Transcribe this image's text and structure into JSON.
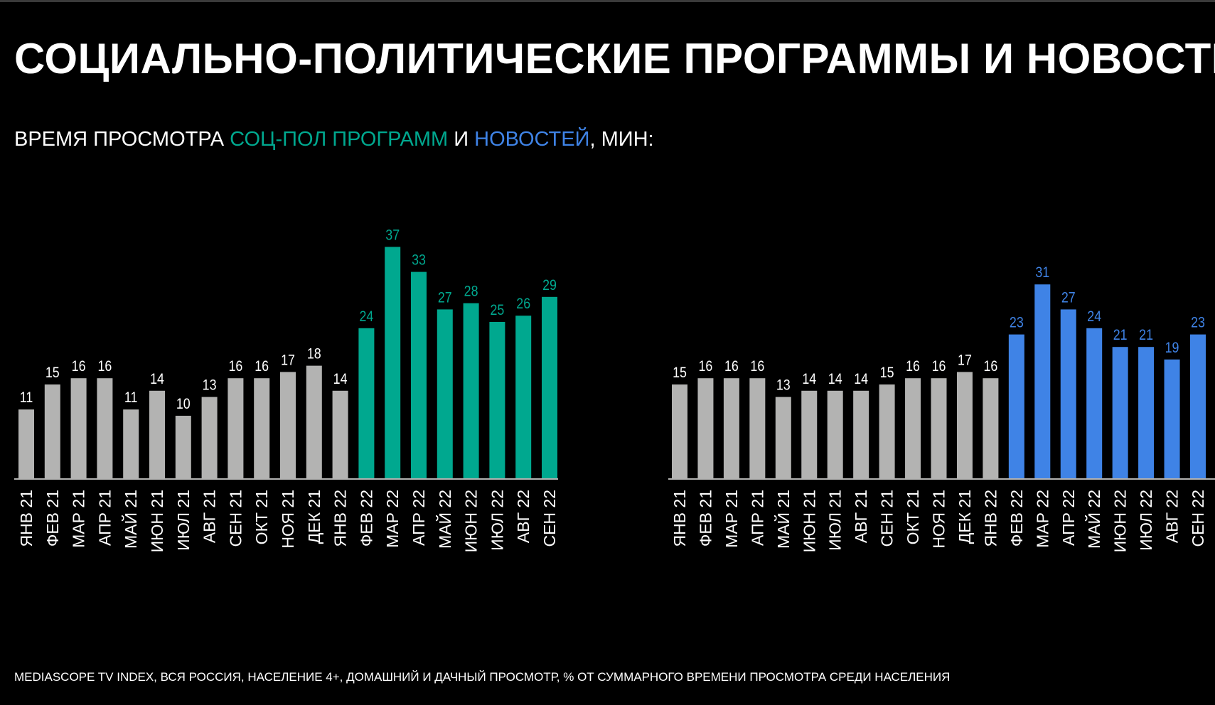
{
  "title": "СОЦИАЛЬНО-ПОЛИТИЧЕСКИЕ ПРОГРАММЫ И НОВОСТИ",
  "subtitle": {
    "part1": "ВРЕМЯ ПРОСМОТРА ",
    "part2": "СОЦ-ПОЛ ПРОГРАММ",
    "part3": " И ",
    "part4": "НОВОСТЕЙ",
    "part5": ", МИН:"
  },
  "footer": "MEDIASCOPE TV INDEX, ВСЯ РОССИЯ, НАСЕЛЕНИЕ 4+, ДОМАШНИЙ И ДАЧНЫЙ ПРОСМОТР, % ОТ СУММАРНОГО ВРЕМЕНИ ПРОСМОТРА СРЕДИ НАСЕЛЕНИЯ",
  "colors": {
    "gray": "#B3B3B2",
    "teal": "#00A88F",
    "blue": "#3F83E6",
    "background": "#000000"
  },
  "chart_data": [
    {
      "type": "bar",
      "categories": [
        "ЯНВ 21",
        "ФЕВ 21",
        "МАР 21",
        "АПР 21",
        "МАЙ 21",
        "ИЮН 21",
        "ИЮЛ 21",
        "АВГ 21",
        "СЕН 21",
        "ОКТ 21",
        "НОЯ 21",
        "ДЕК 21",
        "ЯНВ 22",
        "ФЕВ 22",
        "МАР 22",
        "АПР 22",
        "МАЙ 22",
        "ИЮН 22",
        "ИЮЛ 22",
        "АВГ 22",
        "СЕН 22"
      ],
      "values": [
        11,
        15,
        16,
        16,
        11,
        14,
        10,
        13,
        16,
        16,
        17,
        18,
        14,
        24,
        37,
        33,
        27,
        28,
        25,
        26,
        29
      ],
      "highlight_from": "ФЕВ 22",
      "base_color": "#B3B3B2",
      "highlight_color": "#00A88F",
      "ylim": [
        0,
        38
      ],
      "grid": false,
      "data_labels": true
    },
    {
      "type": "bar",
      "categories": [
        "ЯНВ 21",
        "ФЕВ 21",
        "МАР 21",
        "АПР 21",
        "МАЙ 21",
        "ИЮН 21",
        "ИЮЛ 21",
        "АВГ 21",
        "СЕН 21",
        "ОКТ 21",
        "НОЯ 21",
        "ДЕК 21",
        "ЯНВ 22",
        "ФЕВ 22",
        "МАР 22",
        "АПР 22",
        "МАЙ 22",
        "ИЮН 22",
        "ИЮЛ 22",
        "АВГ 22",
        "СЕН 22"
      ],
      "values": [
        15,
        16,
        16,
        16,
        13,
        14,
        14,
        14,
        15,
        16,
        16,
        17,
        16,
        23,
        31,
        27,
        24,
        21,
        21,
        19,
        23
      ],
      "highlight_from": "ФЕВ 22",
      "base_color": "#B3B3B2",
      "highlight_color": "#3F83E6",
      "ylim": [
        0,
        38
      ],
      "grid": false,
      "data_labels": true
    }
  ]
}
